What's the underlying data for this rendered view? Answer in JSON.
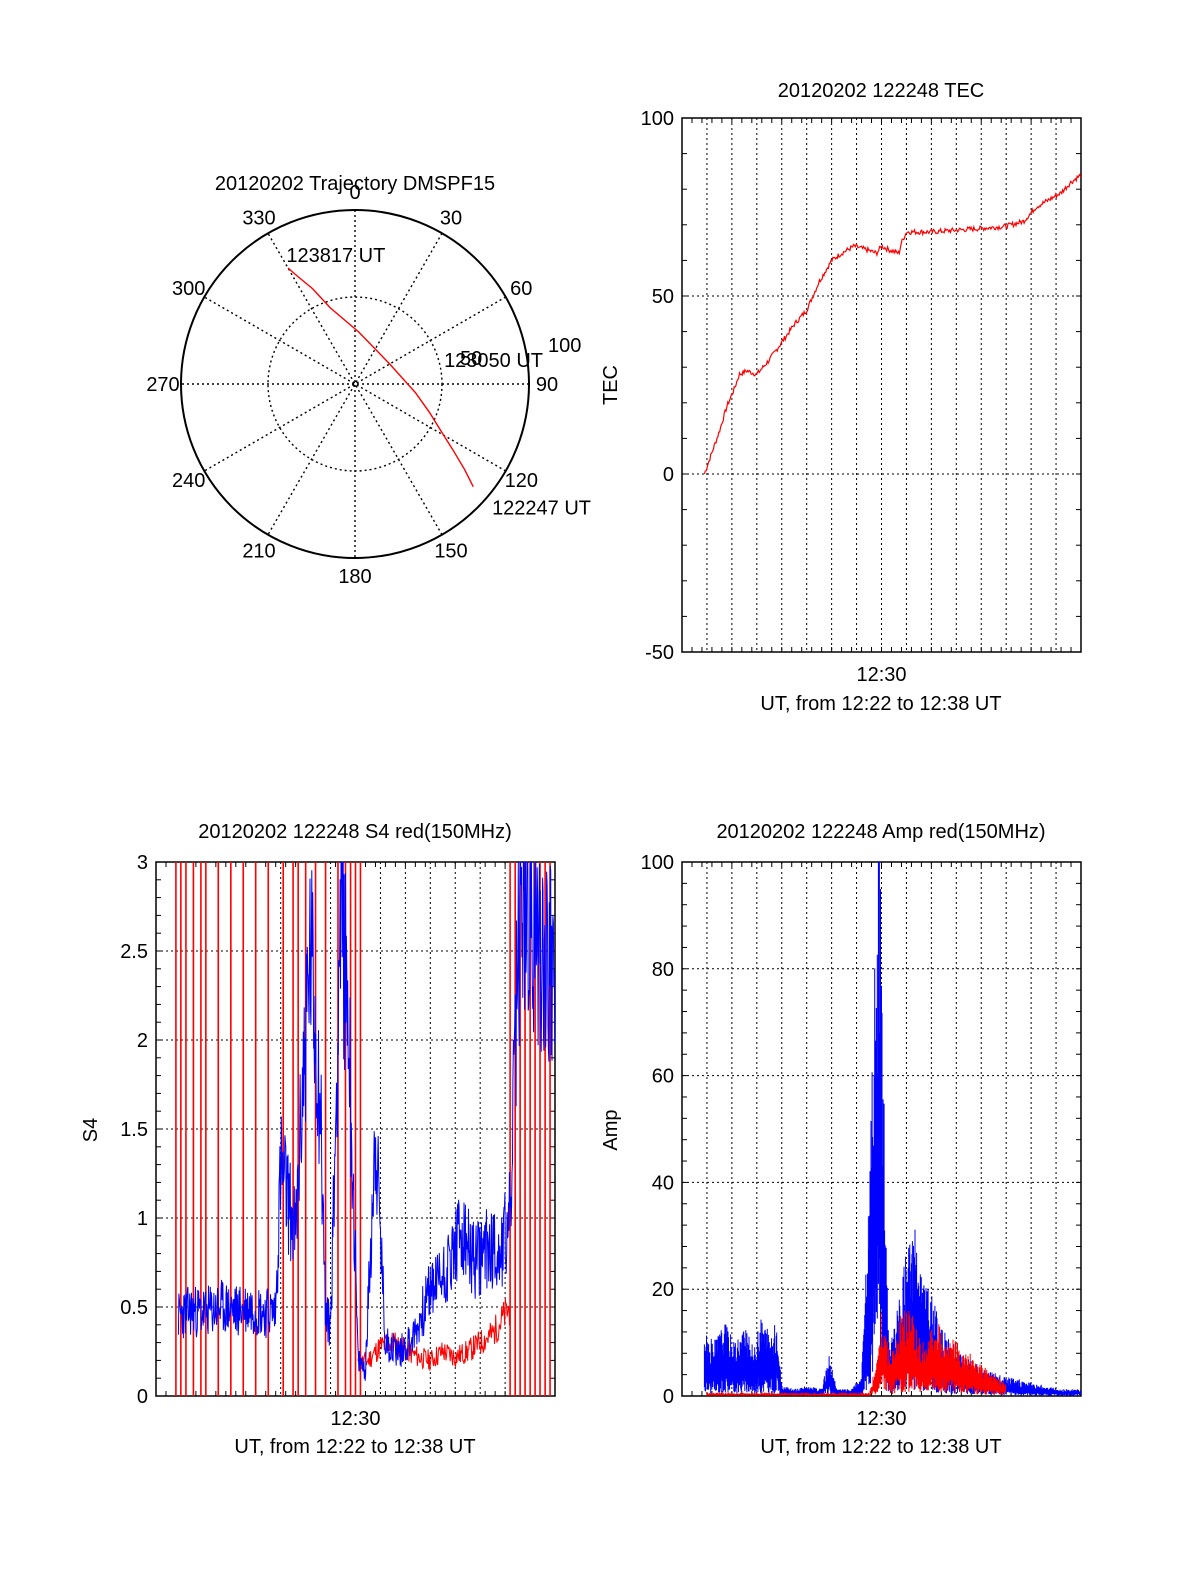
{
  "chart_data": [
    {
      "type": "polar",
      "title": "20120202 Trajectory DMSPF15",
      "angle_labels": [
        "0",
        "30",
        "60",
        "90",
        "120",
        "150",
        "180",
        "210",
        "240",
        "270",
        "300",
        "330"
      ],
      "radius_labels": [
        "50",
        "100"
      ],
      "r_max": 100,
      "trajectory": {
        "color": "#ff0000",
        "points": [
          {
            "az": 131,
            "el": 0
          },
          {
            "az": 128,
            "el": 10
          },
          {
            "az": 124,
            "el": 22
          },
          {
            "az": 119,
            "el": 33
          },
          {
            "az": 111,
            "el": 44
          },
          {
            "az": 98,
            "el": 55
          },
          {
            "az": 60,
            "el": 67
          },
          {
            "az": 4,
            "el": 60
          },
          {
            "az": 342,
            "el": 44
          },
          {
            "az": 336,
            "el": 30
          },
          {
            "az": 332,
            "el": 20
          },
          {
            "az": 330,
            "el": 13
          }
        ]
      },
      "annotations": [
        {
          "text": "123817 UT",
          "az": 332,
          "r": 84
        },
        {
          "text": "123050 UT",
          "az": 75,
          "r": 53
        },
        {
          "text": "122247 UT",
          "az": 132,
          "r": 106
        }
      ]
    },
    {
      "type": "line",
      "title": "20120202 122248 TEC",
      "ylabel": "TEC",
      "xlabel": "UT, from 12:22 to 12:38 UT",
      "xlim": [
        12.3667,
        12.6333
      ],
      "ylim": [
        -50,
        100
      ],
      "yticks": [
        -50,
        0,
        50,
        100
      ],
      "xticks": [
        {
          "value": 12.5,
          "label": "12:30"
        }
      ],
      "grid": true,
      "series": [
        {
          "color": "#ff0000",
          "x": [
            12.3817,
            12.3867,
            12.3917,
            12.3967,
            12.4017,
            12.405,
            12.41,
            12.4167,
            12.425,
            12.4333,
            12.4417,
            12.45,
            12.4583,
            12.4667,
            12.4733,
            12.4817,
            12.49,
            12.4967,
            12.5,
            12.505,
            12.5117,
            12.5133,
            12.5167,
            12.5333,
            12.55,
            12.5667,
            12.5817,
            12.5867,
            12.595,
            12.6033,
            12.6117,
            12.62,
            12.6267,
            12.6333
          ],
          "y": [
            0,
            6,
            12,
            19,
            24,
            28,
            29,
            28,
            32,
            37,
            42,
            46,
            54,
            60,
            62,
            64,
            63,
            62,
            64,
            63,
            62,
            65,
            68,
            68,
            68.5,
            69,
            69.5,
            70,
            71,
            75,
            77,
            79,
            82,
            84
          ]
        }
      ]
    },
    {
      "type": "line",
      "title": "20120202 122248 S4 red(150MHz)",
      "ylabel": "S4",
      "xlabel": "UT, from 12:22 to 12:38 UT",
      "xlim": [
        12.3667,
        12.6333
      ],
      "ylim": [
        0,
        3
      ],
      "yticks": [
        0,
        0.5,
        1,
        1.5,
        2,
        2.5,
        3
      ],
      "xticks": [
        {
          "value": 12.5,
          "label": "12:30"
        }
      ],
      "grid": true,
      "series": [
        {
          "color": "#ff0000",
          "x": [
            12.3833,
            12.3867,
            12.39,
            12.395,
            12.4,
            12.405,
            12.41,
            12.4333,
            12.4517,
            12.4583,
            12.4667,
            12.475,
            12.4833,
            12.4917,
            12.5017,
            12.5083,
            12.5167,
            12.525,
            12.5333,
            12.5417,
            12.55,
            12.5583,
            12.5667,
            12.575,
            12.5833,
            12.5917,
            12.6033
          ],
          "y": [
            3,
            3,
            3,
            3,
            3,
            3,
            3,
            3,
            3,
            3,
            3,
            3,
            3,
            3,
            0.18,
            0.2,
            0.28,
            0.3,
            0.26,
            0.22,
            0.2,
            0.25,
            0.22,
            0.25,
            0.3,
            0.35,
            0.5
          ],
          "spikes_x": [
            12.38,
            12.3833,
            12.3867,
            12.3917,
            12.3967,
            12.4,
            12.4083,
            12.4167,
            12.425,
            12.4333,
            12.4417,
            12.4517,
            12.4583,
            12.4617,
            12.4667,
            12.4733,
            12.48,
            12.4883,
            12.4933,
            12.4967,
            12.5,
            12.5033,
            12.6033,
            12.6067,
            12.61,
            12.6133,
            12.6167,
            12.62,
            12.6233,
            12.6267,
            12.63
          ]
        },
        {
          "color": "#0000ff",
          "x": [
            12.3817,
            12.39,
            12.4,
            12.41,
            12.42,
            12.43,
            12.44,
            12.4467,
            12.45,
            12.455,
            12.46,
            12.465,
            12.47,
            12.4767,
            12.48,
            12.4833,
            12.4867,
            12.49,
            12.495,
            12.5017,
            12.5067,
            12.5133,
            12.52,
            12.53,
            12.54,
            12.55,
            12.56,
            12.57,
            12.58,
            12.59,
            12.5967,
            12.6033,
            12.61,
            12.62,
            12.6333
          ],
          "y": [
            0.45,
            0.48,
            0.47,
            0.5,
            0.48,
            0.5,
            0.47,
            0.48,
            1.3,
            1.1,
            0.9,
            1.8,
            2.5,
            1.6,
            0.45,
            0.4,
            1.5,
            2.8,
            2.2,
            0.2,
            0.15,
            1.5,
            0.3,
            0.25,
            0.35,
            0.6,
            0.7,
            0.9,
            0.75,
            0.85,
            0.8,
            1.0,
            2.8,
            2.6,
            2.4
          ]
        }
      ]
    },
    {
      "type": "line",
      "title": "20120202 122248 Amp red(150MHz)",
      "ylabel": "Amp",
      "xlabel": "UT, from 12:22 to 12:38 UT",
      "xlim": [
        12.3667,
        12.6333
      ],
      "ylim": [
        0,
        100
      ],
      "yticks": [
        0,
        20,
        40,
        60,
        80,
        100
      ],
      "xticks": [
        {
          "value": 12.5,
          "label": "12:30"
        }
      ],
      "grid": true,
      "series": [
        {
          "color": "#ff0000",
          "x": [
            12.3833,
            12.4417,
            12.4833,
            12.4917,
            12.4967,
            12.5,
            12.5033,
            12.5067,
            12.51,
            12.515,
            12.52,
            12.525,
            12.53,
            12.535,
            12.54,
            12.545,
            12.55,
            12.56,
            12.57,
            12.5833
          ],
          "y": [
            0.5,
            0.5,
            0.5,
            0.5,
            5,
            14,
            9,
            6,
            10,
            13,
            12,
            9,
            8,
            11,
            10,
            9,
            8,
            6,
            4,
            2
          ]
        },
        {
          "color": "#0000ff",
          "x": [
            12.3817,
            12.3883,
            12.395,
            12.4017,
            12.4083,
            12.415,
            12.42,
            12.425,
            12.43,
            12.4333,
            12.4417,
            12.45,
            12.46,
            12.465,
            12.47,
            12.475,
            12.48,
            12.4867,
            12.4917,
            12.495,
            12.4983,
            12.5,
            12.5017,
            12.5033,
            12.505,
            12.51,
            12.5167,
            12.5217,
            12.5267,
            12.5333,
            12.54,
            12.55,
            12.56,
            12.57,
            12.58,
            12.6,
            12.62,
            12.6333
          ],
          "y": [
            9,
            8,
            11,
            8,
            10,
            7,
            12,
            9,
            11,
            1.5,
            1,
            1.5,
            1,
            6,
            1,
            1,
            1,
            3,
            30,
            60,
            88,
            70,
            45,
            20,
            8,
            12,
            22,
            25,
            18,
            15,
            10,
            7,
            5,
            4,
            3,
            2,
            1,
            1
          ]
        }
      ]
    }
  ]
}
